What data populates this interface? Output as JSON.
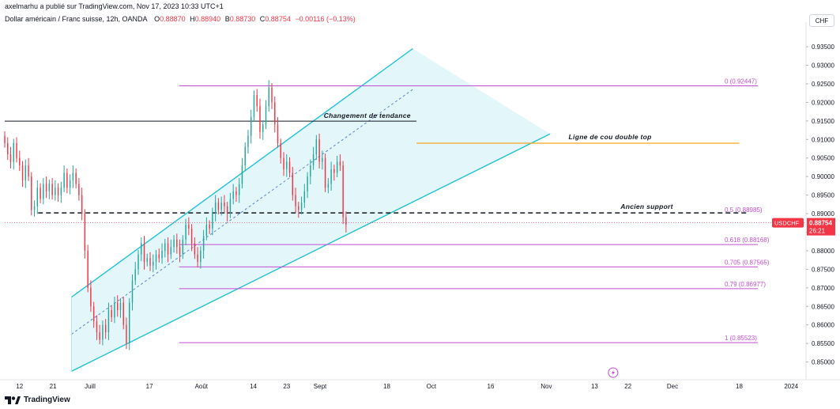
{
  "caption": "axelmarhu a publié sur TradingView.com, Nov 17, 2023 10:33 UTC+1",
  "header": {
    "symbol": "Dollar américain / Franc suisse, 12h, OANDA",
    "o_label": "O",
    "o": "0.88870",
    "h_label": "H",
    "h": "0.88940",
    "b_label": "B",
    "b": "0.88730",
    "c_label": "C",
    "c": "0.88754",
    "change": "−0.00116 (−0.13%)",
    "currency": "CHF"
  },
  "footer": {
    "brand": "TradingView"
  },
  "colors": {
    "up": "#26a69a",
    "down": "#f23645",
    "channel": "#22c1d6",
    "channel_fill": "#e3f6fa",
    "fib": "#c44ed1",
    "neckline": "#f5a623",
    "support": "#131722"
  },
  "chart_data": {
    "type": "candlestick",
    "symbol": "USDCHF",
    "timeframe": "12h",
    "ylim": [
      0.8465,
      0.9395
    ],
    "y_ticks": [
      "0.93500",
      "0.93000",
      "0.92500",
      "0.92000",
      "0.91500",
      "0.91000",
      "0.90500",
      "0.90000",
      "0.89500",
      "0.89000",
      "0.88500",
      "0.88000",
      "0.87500",
      "0.87000",
      "0.86500",
      "0.86000",
      "0.85500",
      "0.85000"
    ],
    "x_ticks": [
      "12",
      "21",
      "Juill",
      "17",
      "Août",
      "14",
      "23",
      "Sept",
      "18",
      "Oct",
      "16",
      "Nov",
      "13",
      "22",
      "Dec",
      "18",
      "2024"
    ],
    "x_tick_days": [
      0,
      9,
      19,
      35,
      49,
      63,
      72,
      81,
      99,
      111,
      127,
      142,
      155,
      164,
      176,
      194,
      208
    ],
    "x_range_days": [
      -4,
      212
    ],
    "last_price": {
      "symbol": "USDCHF",
      "value": "0.88754",
      "countdown": "26:21"
    },
    "candle_path": [
      0.909,
      0.906,
      0.904,
      0.909,
      0.905,
      0.903,
      0.899,
      0.903,
      0.9,
      0.891,
      0.892,
      0.897,
      0.894,
      0.898,
      0.896,
      0.898,
      0.895,
      0.897,
      0.895,
      0.897,
      0.901,
      0.897,
      0.899,
      0.901,
      0.898,
      0.895,
      0.89,
      0.88,
      0.87,
      0.865,
      0.861,
      0.858,
      0.856,
      0.86,
      0.858,
      0.864,
      0.862,
      0.866,
      0.864,
      0.866,
      0.86,
      0.855,
      0.866,
      0.872,
      0.875,
      0.879,
      0.882,
      0.877,
      0.878,
      0.876,
      0.877,
      0.879,
      0.878,
      0.88,
      0.882,
      0.879,
      0.881,
      0.883,
      0.881,
      0.879,
      0.883,
      0.887,
      0.886,
      0.882,
      0.879,
      0.877,
      0.88,
      0.884,
      0.887,
      0.886,
      0.89,
      0.893,
      0.891,
      0.893,
      0.892,
      0.89,
      0.894,
      0.896,
      0.895,
      0.898,
      0.903,
      0.908,
      0.911,
      0.916,
      0.922,
      0.919,
      0.912,
      0.914,
      0.919,
      0.924,
      0.92,
      0.914,
      0.909,
      0.905,
      0.902,
      0.904,
      0.901,
      0.895,
      0.892,
      0.891,
      0.893,
      0.896,
      0.9,
      0.903,
      0.906,
      0.91,
      0.904,
      0.905,
      0.897,
      0.898,
      0.902,
      0.901,
      0.904,
      0.903,
      0.889,
      0.887
    ],
    "channel": {
      "upper": [
        [
          14,
          0.8675
        ],
        [
          106,
          0.9345
        ]
      ],
      "lower": [
        [
          14,
          0.8475
        ],
        [
          143,
          0.9115
        ]
      ],
      "median": [
        [
          14,
          0.8575
        ],
        [
          106,
          0.9235
        ]
      ]
    },
    "fibonacci": [
      {
        "label": "0 (0.92447)",
        "value": 0.92447
      },
      {
        "label": "0.5 (0.88985)",
        "value": 0.88985
      },
      {
        "label": "0.618 (0.88168)",
        "value": 0.88168
      },
      {
        "label": "0.705 (0.87565)",
        "value": 0.87565
      },
      {
        "label": "0.79 (0.86977)",
        "value": 0.86977
      },
      {
        "label": "1 (0.85523)",
        "value": 0.85523
      }
    ],
    "annotations": [
      {
        "text": "Changement de tendance",
        "price": 0.91495
      },
      {
        "text": "Ligne de cou double top",
        "price": 0.909
      },
      {
        "text": "Ancien support",
        "price": 0.8902
      }
    ]
  }
}
